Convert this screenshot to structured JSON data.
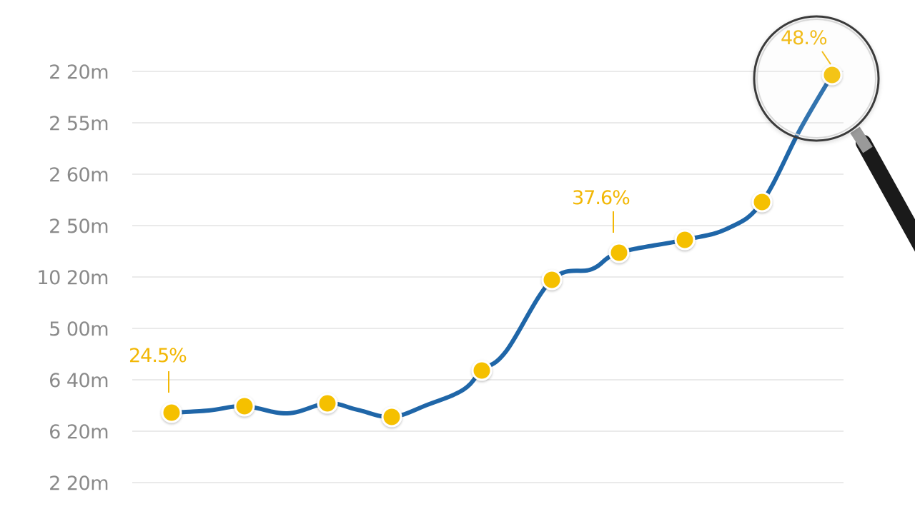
{
  "chart_data": {
    "type": "line",
    "y_tick_labels": [
      "2 20m",
      "2 55m",
      "2 60m",
      "2 50m",
      "10 20m",
      "5 00m",
      "6 40m",
      "6 20m",
      "2 20m"
    ],
    "grid": true,
    "series": [
      {
        "color": "#1f66a8",
        "marker_color": "#f5c000",
        "levels": [
          0.172,
          0.184,
          0.167,
          0.188,
          0.135,
          0.181,
          0.241,
          0.319,
          0.538,
          0.586,
          0.646,
          0.681,
          0.758,
          0.848
        ]
      }
    ],
    "markers_on_points": [
      0,
      1,
      3,
      5,
      7,
      9,
      10,
      12,
      13
    ],
    "annotations": [
      {
        "text": "24.5%",
        "point": 0
      },
      {
        "text": "37.6%",
        "point": 10
      },
      {
        "text": "48.%",
        "point": 13
      }
    ],
    "highlight": {
      "icon": "magnifier-icon",
      "point": 13
    }
  },
  "colors": {
    "line": "#1f66a8",
    "marker": "#f5c000",
    "annotation": "#f2b705",
    "grid": "#e3e3e3",
    "tick_text": "#8a8a8a"
  }
}
